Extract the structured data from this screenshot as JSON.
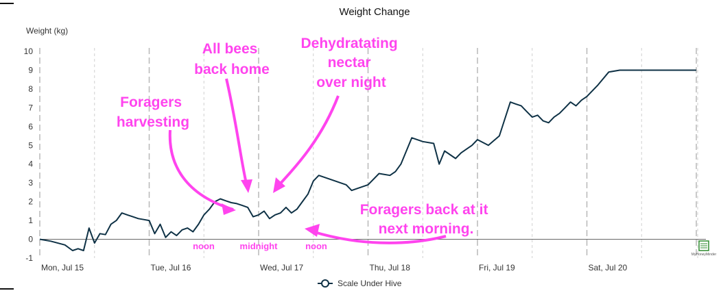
{
  "chart_data": {
    "type": "line",
    "title": "Weight Change",
    "ylabel": "Weight (kg)",
    "xlabel": "",
    "ylim": [
      -1,
      10
    ],
    "yticks": [
      -1,
      0,
      1,
      2,
      3,
      4,
      5,
      6,
      7,
      8,
      9,
      10
    ],
    "xlim": [
      0,
      6.0
    ],
    "xtick_labels": [
      {
        "x": 0,
        "label": "Mon, Jul 15"
      },
      {
        "x": 1,
        "label": "Tue, Jul 16"
      },
      {
        "x": 2,
        "label": "Wed, Jul 17"
      },
      {
        "x": 3,
        "label": "Thu, Jul 18"
      },
      {
        "x": 4,
        "label": "Fri, Jul 19"
      },
      {
        "x": 5,
        "label": "Sat, Jul 20"
      }
    ],
    "grid": {
      "major_day_lines": true,
      "minor_lines": true,
      "horizontal": false
    },
    "legend_position": "bottom",
    "series": [
      {
        "name": "Scale Under Hive",
        "color": "#0e3145",
        "x": [
          0,
          0.1,
          0.23,
          0.3,
          0.35,
          0.4,
          0.45,
          0.5,
          0.55,
          0.6,
          0.65,
          0.7,
          0.75,
          0.8,
          0.85,
          0.9,
          0.95,
          1.0,
          1.05,
          1.1,
          1.15,
          1.2,
          1.25,
          1.3,
          1.35,
          1.4,
          1.45,
          1.5,
          1.55,
          1.6,
          1.65,
          1.7,
          1.75,
          1.8,
          1.85,
          1.9,
          1.95,
          2.0,
          2.05,
          2.1,
          2.15,
          2.2,
          2.25,
          2.3,
          2.35,
          2.4,
          2.45,
          2.5,
          2.55,
          2.6,
          2.65,
          2.7,
          2.75,
          2.8,
          2.85,
          2.9,
          2.95,
          3.0,
          3.1,
          3.2,
          3.25,
          3.3,
          3.4,
          3.5,
          3.6,
          3.65,
          3.7,
          3.75,
          3.8,
          3.85,
          3.9,
          3.95,
          4.0,
          4.1,
          4.2,
          4.3,
          4.35,
          4.4,
          4.45,
          4.5,
          4.55,
          4.6,
          4.65,
          4.7,
          4.75,
          4.8,
          4.85,
          4.9,
          4.95,
          5.0,
          5.1,
          5.2,
          5.3,
          5.35,
          5.4,
          5.45,
          5.5,
          5.55,
          5.6,
          5.7,
          5.75,
          5.8,
          5.85,
          5.9,
          5.95,
          6.0,
          6.05,
          6.1,
          6.15,
          6.2
        ],
        "values": [
          0.0,
          -0.1,
          -0.3,
          -0.6,
          -0.5,
          -0.6,
          0.6,
          -0.2,
          0.3,
          0.25,
          0.8,
          1.0,
          1.4,
          1.3,
          1.2,
          1.1,
          1.05,
          1.0,
          0.3,
          0.8,
          0.1,
          0.4,
          0.2,
          0.5,
          0.6,
          0.4,
          0.8,
          1.3,
          1.6,
          2.0,
          2.15,
          2.05,
          1.95,
          1.9,
          1.8,
          1.7,
          1.2,
          1.3,
          1.5,
          1.1,
          1.3,
          1.4,
          1.7,
          1.4,
          1.6,
          2.0,
          2.4,
          3.1,
          3.4,
          3.3,
          3.2,
          3.1,
          3.0,
          2.9,
          2.6,
          2.7,
          2.8,
          2.9,
          3.5,
          3.4,
          3.6,
          4.0,
          5.4,
          5.2,
          5.1,
          4.0,
          4.7,
          4.5,
          4.3,
          4.6,
          4.8,
          5.0,
          5.3,
          5.0,
          5.5,
          7.3,
          7.2,
          7.1,
          6.8,
          6.5,
          6.6,
          6.3,
          6.2,
          6.5,
          6.7,
          7.0,
          7.3,
          7.1,
          7.4,
          7.6,
          8.2,
          8.9,
          9.0,
          9.0,
          9.0,
          9.0,
          9.0,
          9.0,
          9.0,
          9.0,
          9.0,
          9.0,
          9.0,
          9.0,
          9.0,
          9.0,
          9.0,
          9.0,
          9.0,
          9.0
        ]
      }
    ],
    "annotations": [
      {
        "text_lines": [
          "Foragers",
          "harvesting"
        ],
        "color": "#ff44ee"
      },
      {
        "text_lines": [
          "All bees",
          "back home"
        ],
        "color": "#ff44ee"
      },
      {
        "text_lines": [
          "Dehydratating",
          "nectar",
          "over night"
        ],
        "color": "#ff44ee"
      },
      {
        "text_lines": [
          "Foragers back at it",
          "next morning."
        ],
        "color": "#ff44ee"
      }
    ],
    "small_labels": [
      "noon",
      "midnight",
      "noon"
    ]
  },
  "watermark": {
    "label": "MyHoneyMinder",
    "icon": "spreadsheet-export-icon"
  }
}
